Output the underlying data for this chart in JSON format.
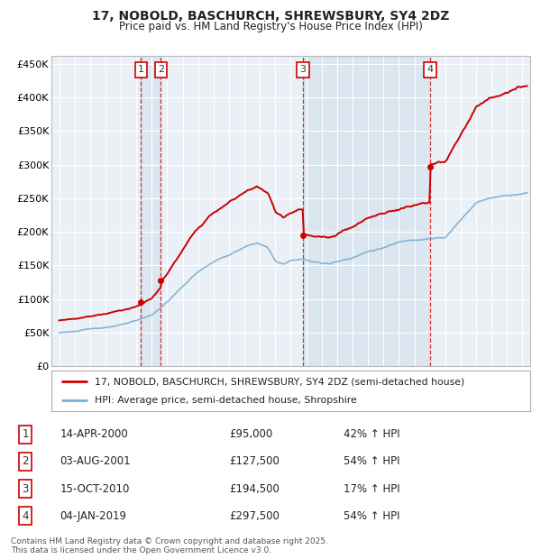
{
  "title": "17, NOBOLD, BASCHURCH, SHREWSBURY, SY4 2DZ",
  "subtitle": "Price paid vs. HM Land Registry's House Price Index (HPI)",
  "legend_property": "17, NOBOLD, BASCHURCH, SHREWSBURY, SY4 2DZ (semi-detached house)",
  "legend_hpi": "HPI: Average price, semi-detached house, Shropshire",
  "footer1": "Contains HM Land Registry data © Crown copyright and database right 2025.",
  "footer2": "This data is licensed under the Open Government Licence v3.0.",
  "sales": [
    {
      "num": 1,
      "date": "14-APR-2000",
      "price": 95000,
      "year": 2000.29,
      "pct": "42% ↑ HPI"
    },
    {
      "num": 2,
      "date": "03-AUG-2001",
      "price": 127500,
      "year": 2001.58,
      "pct": "54% ↑ HPI"
    },
    {
      "num": 3,
      "date": "15-OCT-2010",
      "price": 194500,
      "year": 2010.79,
      "pct": "17% ↑ HPI"
    },
    {
      "num": 4,
      "date": "04-JAN-2019",
      "price": 297500,
      "year": 2019.01,
      "pct": "54% ↑ HPI"
    }
  ],
  "ylim": [
    0,
    462000
  ],
  "xlim": [
    1994.5,
    2025.5
  ],
  "yticks": [
    0,
    50000,
    100000,
    150000,
    200000,
    250000,
    300000,
    350000,
    400000,
    450000
  ],
  "ytick_labels": [
    "£0",
    "£50K",
    "£100K",
    "£150K",
    "£200K",
    "£250K",
    "£300K",
    "£350K",
    "£400K",
    "£450K"
  ],
  "property_color": "#cc0000",
  "hpi_color": "#7aafd4",
  "vline_color": "#cc0000",
  "shade_color": "#dde8f0",
  "background_color": "#eaf0f6",
  "grid_color": "#ffffff"
}
